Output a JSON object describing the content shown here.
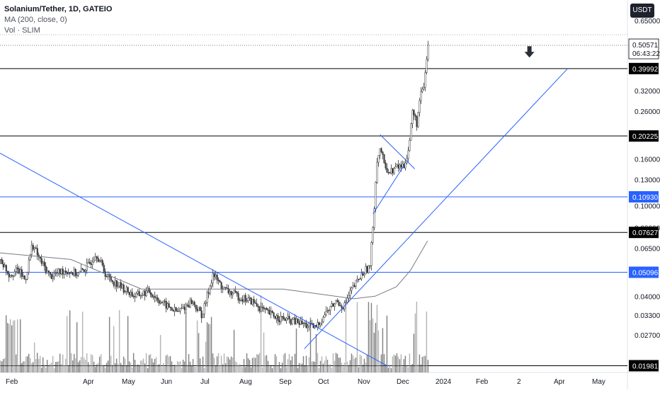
{
  "legend": {
    "symbol": "Solanium/Tether, 1D, GATEIO",
    "ma": "MA (200, close, 0)",
    "vol": "Vol · SLIM"
  },
  "currency_button": "USDT",
  "chart_data": {
    "type": "candlestick",
    "symbol": "Solanium/Tether",
    "interval": "1D",
    "exchange": "GATEIO",
    "scale": "log",
    "y_tick_labels": [
      "0.65000",
      "0.32000",
      "0.26000",
      "0.16000",
      "0.13000",
      "0.10000",
      "0.08000",
      "0.06500",
      "0.04000",
      "0.03300",
      "0.02700"
    ],
    "x_tick_labels": [
      "Feb",
      "Apr",
      "May",
      "Jun",
      "Jul",
      "Aug",
      "Sep",
      "Oct",
      "Nov",
      "Dec",
      "2024",
      "Feb",
      "2",
      "Apr",
      "May"
    ],
    "price_levels": [
      {
        "value": 0.39992,
        "label": "0.39992",
        "color": "#000000"
      },
      {
        "value": 0.20225,
        "label": "0.20225",
        "color": "#000000"
      },
      {
        "value": 0.1093,
        "label": "0.10930",
        "color": "#2962ff"
      },
      {
        "value": 0.07627,
        "label": "0.07627",
        "color": "#000000"
      },
      {
        "value": 0.05096,
        "label": "0.05096",
        "color": "#2962ff"
      },
      {
        "value": 0.01981,
        "label": "0.01981",
        "color": "#000000"
      }
    ],
    "last_price": {
      "value": 0.50571,
      "label": "0.50571",
      "countdown": "06:43:22"
    },
    "anchors": [
      {
        "t": 0,
        "p": 0.058
      },
      {
        "t": 12,
        "p": 0.05
      },
      {
        "t": 25,
        "p": 0.052
      },
      {
        "t": 35,
        "p": 0.047
      },
      {
        "t": 45,
        "p": 0.068
      },
      {
        "t": 55,
        "p": 0.058
      },
      {
        "t": 70,
        "p": 0.049
      },
      {
        "t": 90,
        "p": 0.052
      },
      {
        "t": 110,
        "p": 0.05
      },
      {
        "t": 125,
        "p": 0.055
      },
      {
        "t": 135,
        "p": 0.062
      },
      {
        "t": 150,
        "p": 0.049
      },
      {
        "t": 170,
        "p": 0.044
      },
      {
        "t": 190,
        "p": 0.04
      },
      {
        "t": 210,
        "p": 0.042
      },
      {
        "t": 230,
        "p": 0.037
      },
      {
        "t": 250,
        "p": 0.034
      },
      {
        "t": 270,
        "p": 0.038
      },
      {
        "t": 285,
        "p": 0.033
      },
      {
        "t": 300,
        "p": 0.05
      },
      {
        "t": 315,
        "p": 0.043
      },
      {
        "t": 335,
        "p": 0.04
      },
      {
        "t": 355,
        "p": 0.038
      },
      {
        "t": 375,
        "p": 0.034
      },
      {
        "t": 395,
        "p": 0.032
      },
      {
        "t": 415,
        "p": 0.031
      },
      {
        "t": 430,
        "p": 0.03
      },
      {
        "t": 445,
        "p": 0.029
      },
      {
        "t": 460,
        "p": 0.034
      },
      {
        "t": 475,
        "p": 0.038
      },
      {
        "t": 485,
        "p": 0.036
      },
      {
        "t": 495,
        "p": 0.042
      },
      {
        "t": 505,
        "p": 0.047
      },
      {
        "t": 515,
        "p": 0.052
      },
      {
        "t": 522,
        "p": 0.054
      },
      {
        "t": 527,
        "p": 0.09
      },
      {
        "t": 532,
        "p": 0.16
      },
      {
        "t": 537,
        "p": 0.18
      },
      {
        "t": 542,
        "p": 0.15
      },
      {
        "t": 550,
        "p": 0.14
      },
      {
        "t": 560,
        "p": 0.148
      },
      {
        "t": 570,
        "p": 0.15
      },
      {
        "t": 577,
        "p": 0.18
      },
      {
        "t": 582,
        "p": 0.26
      },
      {
        "t": 588,
        "p": 0.23
      },
      {
        "t": 593,
        "p": 0.3
      },
      {
        "t": 598,
        "p": 0.33
      },
      {
        "t": 604,
        "p": 0.506
      }
    ],
    "ma200": [
      {
        "t": 0,
        "p": 0.062
      },
      {
        "t": 100,
        "p": 0.058
      },
      {
        "t": 200,
        "p": 0.043
      },
      {
        "t": 300,
        "p": 0.043
      },
      {
        "t": 400,
        "p": 0.043
      },
      {
        "t": 500,
        "p": 0.039
      },
      {
        "t": 530,
        "p": 0.04
      },
      {
        "t": 560,
        "p": 0.044
      },
      {
        "t": 580,
        "p": 0.052
      },
      {
        "t": 604,
        "p": 0.07
      }
    ],
    "trendlines": [
      {
        "t1": 0,
        "p1": 0.17,
        "t2": 548,
        "p2": 0.0197
      },
      {
        "t1": 430,
        "p1": 0.0235,
        "t2": 802,
        "p2": 0.4
      },
      {
        "t1": 527,
        "p1": 0.092,
        "t2": 572,
        "p2": 0.152
      },
      {
        "t1": 537,
        "p1": 0.205,
        "t2": 586,
        "p2": 0.145
      }
    ],
    "last_candle_t": 604,
    "arrow": {
      "t": 748,
      "p": 0.46
    }
  }
}
